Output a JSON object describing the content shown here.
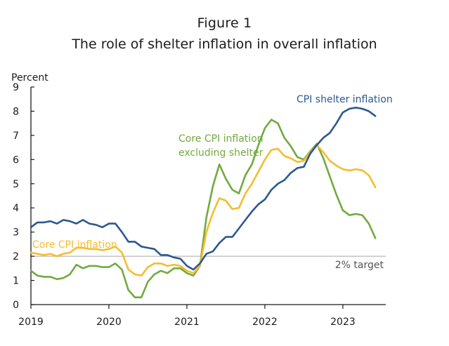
{
  "figure": {
    "label": "Figure 1",
    "title": "The role of shelter inflation in overall inflation"
  },
  "chart_data": {
    "type": "line",
    "title": "The role of shelter inflation in overall inflation",
    "ylabel": "Percent",
    "xlabel": "",
    "ylim": [
      0,
      9
    ],
    "xlim": [
      2019.0,
      2023.5
    ],
    "yticks": [
      "0",
      "1",
      "2",
      "3",
      "4",
      "5",
      "6",
      "7",
      "8",
      "9"
    ],
    "xticks": [
      {
        "value": 2019,
        "label": "2019"
      },
      {
        "value": 2020,
        "label": "2020"
      },
      {
        "value": 2021,
        "label": "2021"
      },
      {
        "value": 2022,
        "label": "2022"
      },
      {
        "value": 2023,
        "label": "2023"
      }
    ],
    "reference_line": {
      "value": 2,
      "label": "2% target",
      "color": "#b8b8b8"
    },
    "x_start": 2019.0,
    "x_step": 0.08333,
    "series": [
      {
        "name": "CPI shelter inflation",
        "color": "#2c5890",
        "values": [
          3.2,
          3.4,
          3.4,
          3.45,
          3.35,
          3.5,
          3.45,
          3.35,
          3.5,
          3.35,
          3.3,
          3.2,
          3.35,
          3.35,
          3.0,
          2.6,
          2.6,
          2.4,
          2.35,
          2.3,
          2.05,
          2.05,
          1.95,
          1.9,
          1.6,
          1.45,
          1.7,
          2.1,
          2.2,
          2.55,
          2.8,
          2.8,
          3.15,
          3.5,
          3.85,
          4.15,
          4.35,
          4.75,
          5.0,
          5.15,
          5.45,
          5.65,
          5.7,
          6.25,
          6.6,
          6.9,
          7.1,
          7.5,
          7.95,
          8.1,
          8.15,
          8.1,
          8.0,
          7.8
        ]
      },
      {
        "name": "Core CPI inflation",
        "color": "#f5bd2e",
        "values": [
          2.15,
          2.1,
          2.05,
          2.1,
          2.0,
          2.1,
          2.15,
          2.35,
          2.35,
          2.3,
          2.3,
          2.25,
          2.3,
          2.4,
          2.15,
          1.45,
          1.25,
          1.2,
          1.55,
          1.7,
          1.7,
          1.6,
          1.65,
          1.6,
          1.4,
          1.3,
          1.6,
          3.0,
          3.8,
          4.4,
          4.3,
          3.95,
          4.0,
          4.6,
          5.0,
          5.5,
          6.0,
          6.4,
          6.45,
          6.15,
          6.05,
          5.9,
          5.95,
          6.3,
          6.6,
          6.3,
          5.95,
          5.75,
          5.6,
          5.55,
          5.6,
          5.55,
          5.35,
          4.85
        ]
      },
      {
        "name": "Core CPI inflation excluding shelter",
        "color": "#72aa3f",
        "values": [
          1.4,
          1.2,
          1.15,
          1.15,
          1.05,
          1.1,
          1.25,
          1.65,
          1.5,
          1.6,
          1.6,
          1.55,
          1.55,
          1.7,
          1.45,
          0.6,
          0.3,
          0.3,
          0.95,
          1.25,
          1.4,
          1.3,
          1.5,
          1.5,
          1.3,
          1.2,
          1.6,
          3.6,
          4.9,
          5.8,
          5.2,
          4.75,
          4.6,
          5.35,
          5.8,
          6.6,
          7.3,
          7.65,
          7.5,
          6.9,
          6.55,
          6.1,
          6.0,
          6.35,
          6.65,
          6.05,
          5.3,
          4.55,
          3.9,
          3.7,
          3.75,
          3.7,
          3.35,
          2.75
        ]
      }
    ],
    "annotations": [
      {
        "series": "CPI shelter inflation",
        "lines": [
          "CPI shelter inflation"
        ]
      },
      {
        "series": "Core CPI inflation excluding shelter",
        "lines": [
          "Core CPI inflation",
          "excluding shelter"
        ]
      },
      {
        "series": "Core CPI inflation",
        "lines": [
          "Core CPI inflation"
        ]
      }
    ]
  }
}
